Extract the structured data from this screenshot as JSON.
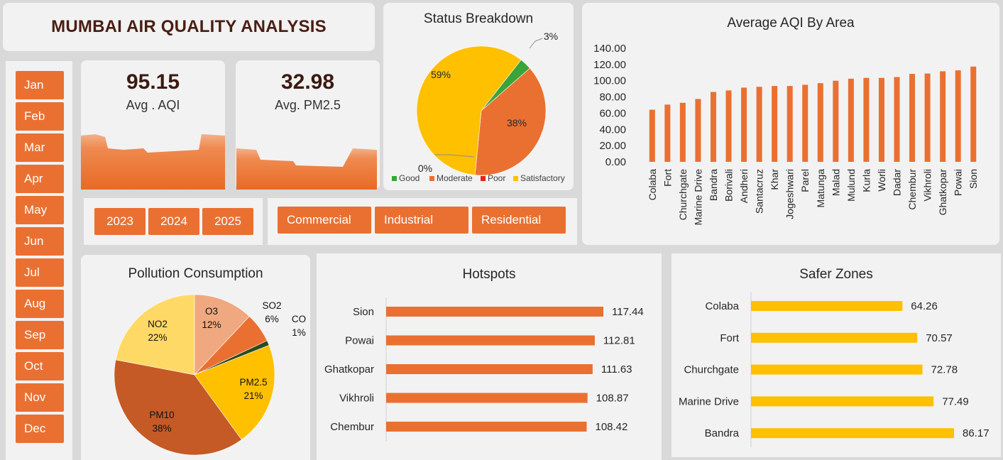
{
  "header": {
    "title": "MUMBAI AIR QUALITY ANALYSIS"
  },
  "months": [
    "Jan",
    "Feb",
    "Mar",
    "Apr",
    "May",
    "Jun",
    "Jul",
    "Aug",
    "Sep",
    "Oct",
    "Nov",
    "Dec"
  ],
  "kpis": {
    "aqi": {
      "value": "95.15",
      "label": "Avg . AQI"
    },
    "pm25": {
      "value": "32.98",
      "label": "Avg. PM2.5"
    }
  },
  "years": [
    "2023",
    "2024",
    "2025"
  ],
  "area_types": [
    "Commercial",
    "Industrial",
    "Residential"
  ],
  "colors": {
    "accent": "#ea7031",
    "good": "#3aa43a",
    "moderate": "#ea7031",
    "poor": "#e0251b",
    "satisfactory": "#ffc000",
    "title_text": "#4a1e12"
  },
  "chart_data": [
    {
      "id": "status-breakdown",
      "type": "pie",
      "title": "Status Breakdown",
      "slices": [
        {
          "name": "Good",
          "value": 3,
          "label": "3%",
          "color": "#3aa43a"
        },
        {
          "name": "Moderate",
          "value": 38,
          "label": "38%",
          "color": "#ea7031"
        },
        {
          "name": "Poor",
          "value": 0,
          "label": "0%",
          "color": "#e0251b"
        },
        {
          "name": "Satisfactory",
          "value": 59,
          "label": "59%",
          "color": "#ffc000"
        }
      ],
      "legend": "bottom"
    },
    {
      "id": "avg-aqi-by-area",
      "type": "bar",
      "title": "Average AQI By Area",
      "categories": [
        "Colaba",
        "Fort",
        "Churchgate",
        "Marine Drive",
        "Bandra",
        "Borivali",
        "Andheri",
        "Santacruz",
        "Khar",
        "Jogeshwari",
        "Parel",
        "Matunga",
        "Malad",
        "Mulund",
        "Kurla",
        "Worli",
        "Dadar",
        "Chembur",
        "Vikhroli",
        "Ghatkopar",
        "Powai",
        "Sion"
      ],
      "values": [
        64.26,
        70.57,
        72.78,
        77.49,
        86.17,
        88,
        91.5,
        92.5,
        93.5,
        93.5,
        95,
        97,
        100,
        102.5,
        103.5,
        103.5,
        104.5,
        108.42,
        108.87,
        111.63,
        112.81,
        117.44
      ],
      "ylim": [
        0,
        140
      ],
      "yticks": [
        "0.00",
        "20.00",
        "40.00",
        "60.00",
        "80.00",
        "100.00",
        "120.00",
        "140.00"
      ],
      "grid": false
    },
    {
      "id": "pollution-consumption",
      "type": "pie",
      "title": "Pollution Consumption",
      "slices": [
        {
          "name": "O3",
          "value": 12,
          "label": "12%",
          "color": "#f0a880"
        },
        {
          "name": "SO2",
          "value": 6,
          "label": "6%",
          "color": "#ea7031"
        },
        {
          "name": "CO",
          "value": 1,
          "label": "1%",
          "color": "#2d4a1e"
        },
        {
          "name": "PM2.5",
          "value": 21,
          "label": "21%",
          "color": "#ffc000"
        },
        {
          "name": "PM10",
          "value": 38,
          "label": "38%",
          "color": "#c55a26"
        },
        {
          "name": "NO2",
          "value": 22,
          "label": "22%",
          "color": "#ffd966"
        }
      ]
    },
    {
      "id": "hotspots",
      "type": "bar",
      "orientation": "horizontal",
      "title": "Hotspots",
      "categories": [
        "Sion",
        "Powai",
        "Ghatkopar",
        "Vikhroli",
        "Chembur"
      ],
      "values": [
        117.44,
        112.81,
        111.63,
        108.87,
        108.42
      ],
      "value_labels": [
        "117.44",
        "112.81",
        "111.63",
        "108.87",
        "108.42"
      ],
      "color": "#ea7031"
    },
    {
      "id": "safer-zones",
      "type": "bar",
      "orientation": "horizontal",
      "title": "Safer Zones",
      "categories": [
        "Colaba",
        "Fort",
        "Churchgate",
        "Marine Drive",
        "Bandra"
      ],
      "values": [
        64.26,
        70.57,
        72.78,
        77.49,
        86.17
      ],
      "value_labels": [
        "64.26",
        "70.57",
        "72.78",
        "77.49",
        "86.17"
      ],
      "color": "#ffc000"
    }
  ]
}
